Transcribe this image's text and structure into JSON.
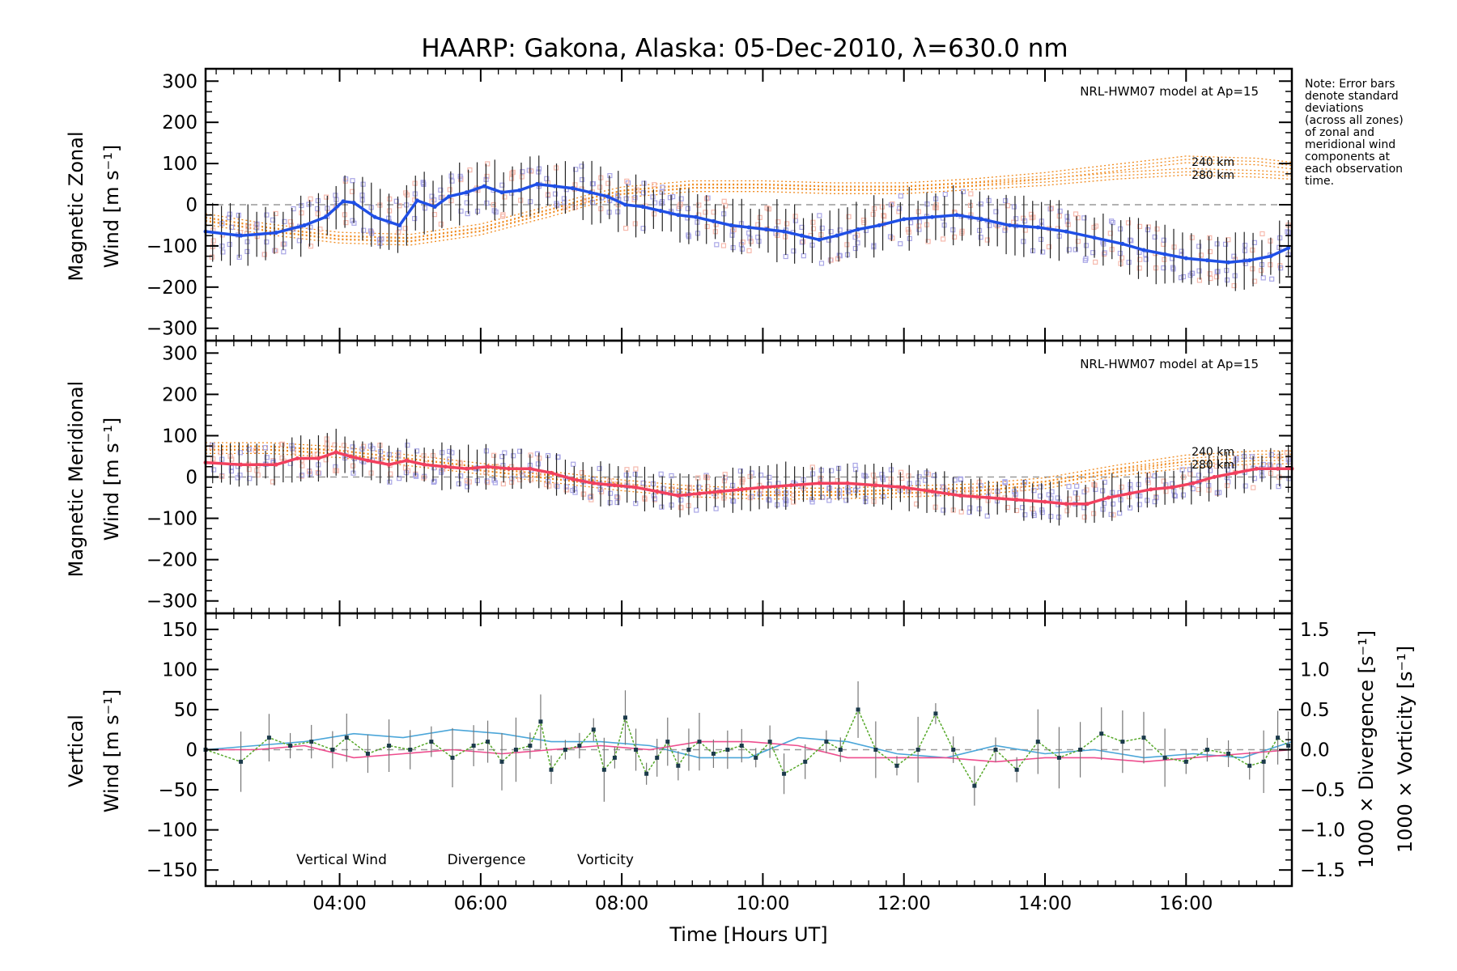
{
  "title": "HAARP: Gakona,  Alaska: 05-Dec-2010, λ=630.0 nm",
  "note": [
    "Note: Error bars",
    "denote standard",
    "deviations",
    "(across all zones)",
    "of zonal and",
    "meridional wind",
    "components at",
    "each observation",
    "time."
  ],
  "xlabel": "Time [Hours UT]",
  "xticks": [
    "04:00",
    "06:00",
    "08:00",
    "10:00",
    "12:00",
    "14:00",
    "16:00"
  ],
  "colors": {
    "zonal": "#1f4fe6",
    "meridional": "#f2405e",
    "model": "#f08a1e",
    "scatter": "#a9a6e6",
    "scatter_alt": "#f6b9ad",
    "errorbar": "#222222",
    "vertical": "#56a829",
    "divergence": "#4ba6d9",
    "vorticity": "#ee4d8e",
    "zero_line": "#999999"
  },
  "panels": {
    "zonal": {
      "ylabel_1": "Magnetic Zonal",
      "ylabel_2": "Wind [m s⁻¹]",
      "yticks": [
        "300",
        "200",
        "100",
        "0",
        "−100",
        "−200",
        "−300"
      ],
      "model_label": "NRL-HWM07 model at Ap=15",
      "alt_labels": [
        "240 km",
        "280 km"
      ]
    },
    "meridional": {
      "ylabel_1": "Magnetic Meridional",
      "ylabel_2": "Wind [m s⁻¹]",
      "yticks": [
        "300",
        "200",
        "100",
        "0",
        "−100",
        "−200",
        "−300"
      ],
      "model_label": "NRL-HWM07 model at Ap=15",
      "alt_labels": [
        "240 km",
        "280 km"
      ]
    },
    "vertical": {
      "ylabel_1": "Vertical",
      "ylabel_2": "Wind [m s⁻¹]",
      "yticks": [
        "150",
        "100",
        "50",
        "0",
        "−50",
        "−100",
        "−150"
      ],
      "yticks_right": [
        "1.5",
        "1.0",
        "0.5",
        "0.0",
        "−0.5",
        "−1.0",
        "−1.5"
      ],
      "ylabel_right_1": "1000 × Divergence [s⁻¹]",
      "ylabel_right_2": "1000 × Vorticity [s⁻¹]",
      "legend": [
        "Vertical Wind",
        "Divergence",
        "Vorticity"
      ]
    }
  },
  "chart_data": [
    {
      "type": "line",
      "panel": "zonal",
      "title": "HAARP: Gakona,  Alaska: 05-Dec-2010, λ=630.0 nm",
      "xlabel": "",
      "ylabel": "Magnetic Zonal Wind [m s⁻¹]",
      "xlim": [
        2.1,
        17.5
      ],
      "ylim": [
        -330,
        330
      ],
      "series": [
        {
          "x": [
            2.1,
            2.6,
            3.1,
            3.5,
            3.8,
            4.05,
            4.2,
            4.5,
            4.85,
            5.1,
            5.35,
            5.55,
            5.8,
            6.05,
            6.3,
            6.55,
            6.8,
            7.05,
            7.3,
            7.55,
            7.8,
            8.05,
            8.3,
            8.55,
            8.8,
            9.05,
            9.3,
            9.55,
            9.8,
            10.05,
            10.3,
            10.55,
            10.8,
            11.05,
            11.35,
            11.65,
            12.0,
            12.4,
            12.75,
            13.1,
            13.5,
            13.9,
            14.3,
            14.7,
            15.1,
            15.4,
            15.7,
            16.0,
            16.3,
            16.6,
            16.9,
            17.2,
            17.45
          ],
          "y": [
            -65,
            -75,
            -68,
            -50,
            -30,
            8,
            5,
            -30,
            -50,
            10,
            -5,
            20,
            30,
            45,
            30,
            35,
            50,
            45,
            40,
            30,
            20,
            0,
            -5,
            -15,
            -25,
            -30,
            -40,
            -50,
            -55,
            -60,
            -65,
            -75,
            -85,
            -75,
            -60,
            -50,
            -35,
            -30,
            -25,
            -35,
            -50,
            -55,
            -65,
            -80,
            -95,
            -110,
            -120,
            -130,
            -135,
            -140,
            -135,
            -125,
            -105
          ]
        },
        {
          "name": "240 km",
          "x": [
            2.1,
            3,
            4,
            5,
            6,
            7,
            7.5,
            8,
            9,
            10,
            11,
            12,
            13,
            14,
            15,
            16,
            17,
            17.5
          ],
          "y": [
            -30,
            -55,
            -75,
            -80,
            -55,
            -10,
            15,
            35,
            50,
            50,
            45,
            45,
            55,
            70,
            90,
            110,
            105,
            95
          ]
        },
        {
          "name": "280 km",
          "x": [
            2.1,
            3,
            4,
            5,
            6,
            7,
            7.5,
            8,
            9,
            10,
            11,
            12,
            13,
            14,
            15,
            16,
            17,
            17.5
          ],
          "y": [
            -40,
            -65,
            -85,
            -90,
            -65,
            -20,
            5,
            25,
            40,
            40,
            35,
            35,
            45,
            55,
            70,
            80,
            75,
            70
          ]
        }
      ]
    },
    {
      "type": "line",
      "panel": "meridional",
      "ylabel": "Magnetic Meridional Wind [m s⁻¹]",
      "xlim": [
        2.1,
        17.5
      ],
      "ylim": [
        -330,
        330
      ],
      "series": [
        {
          "x": [
            2.1,
            2.6,
            3.1,
            3.4,
            3.7,
            3.95,
            4.15,
            4.4,
            4.7,
            4.95,
            5.2,
            5.5,
            5.8,
            6.1,
            6.4,
            6.7,
            7.0,
            7.3,
            7.6,
            7.9,
            8.2,
            8.5,
            8.8,
            9.1,
            9.4,
            9.7,
            10.0,
            10.4,
            10.8,
            11.2,
            11.6,
            12.0,
            12.4,
            12.8,
            13.2,
            13.6,
            14.0,
            14.3,
            14.6,
            14.9,
            15.2,
            15.5,
            15.8,
            16.1,
            16.4,
            16.7,
            17.0,
            17.3,
            17.5
          ],
          "y": [
            35,
            30,
            30,
            45,
            45,
            60,
            50,
            40,
            30,
            40,
            30,
            25,
            20,
            25,
            20,
            20,
            10,
            -5,
            -15,
            -20,
            -25,
            -35,
            -45,
            -40,
            -35,
            -30,
            -25,
            -20,
            -15,
            -15,
            -20,
            -25,
            -35,
            -45,
            -50,
            -55,
            -60,
            -65,
            -65,
            -50,
            -40,
            -30,
            -25,
            -15,
            0,
            10,
            20,
            20,
            20
          ]
        },
        {
          "name": "240 km",
          "x": [
            2.1,
            3,
            4,
            5,
            6,
            7,
            8,
            9,
            10,
            11,
            12,
            13,
            14,
            15,
            16,
            17,
            17.5
          ],
          "y": [
            75,
            75,
            65,
            45,
            25,
            5,
            -15,
            -30,
            -35,
            -35,
            -30,
            -25,
            -10,
            20,
            45,
            55,
            55
          ]
        },
        {
          "name": "280 km",
          "x": [
            2.1,
            3,
            4,
            5,
            6,
            7,
            8,
            9,
            10,
            11,
            12,
            13,
            14,
            15,
            16,
            17,
            17.5
          ],
          "y": [
            65,
            65,
            55,
            35,
            15,
            -5,
            -25,
            -40,
            -45,
            -45,
            -40,
            -35,
            -20,
            10,
            30,
            40,
            40
          ]
        }
      ]
    },
    {
      "type": "line",
      "panel": "vertical",
      "xlabel": "Time [Hours UT]",
      "ylabel": "Vertical Wind [m s⁻¹]",
      "xlim": [
        2.1,
        17.5
      ],
      "ylim": [
        -170,
        170
      ],
      "y2lim": [
        -1.7,
        1.7
      ],
      "series": [
        {
          "name": "Vertical Wind",
          "x": [
            2.1,
            2.6,
            3.0,
            3.3,
            3.6,
            3.9,
            4.1,
            4.4,
            4.7,
            5.0,
            5.3,
            5.6,
            5.9,
            6.1,
            6.3,
            6.5,
            6.7,
            6.85,
            7.0,
            7.2,
            7.4,
            7.6,
            7.75,
            7.9,
            8.05,
            8.2,
            8.35,
            8.5,
            8.65,
            8.8,
            8.95,
            9.1,
            9.3,
            9.5,
            9.7,
            9.9,
            10.1,
            10.3,
            10.6,
            10.9,
            11.1,
            11.35,
            11.6,
            11.9,
            12.2,
            12.45,
            12.7,
            13.0,
            13.3,
            13.6,
            13.9,
            14.2,
            14.5,
            14.8,
            15.1,
            15.4,
            15.7,
            16.0,
            16.3,
            16.6,
            16.9,
            17.1,
            17.3,
            17.45
          ],
          "y": [
            0,
            -15,
            15,
            5,
            10,
            0,
            15,
            -5,
            5,
            0,
            10,
            -10,
            5,
            10,
            -15,
            0,
            5,
            35,
            -25,
            0,
            5,
            25,
            -25,
            -10,
            40,
            0,
            -30,
            -10,
            10,
            -20,
            0,
            10,
            -5,
            0,
            5,
            -10,
            10,
            -30,
            -15,
            10,
            0,
            50,
            0,
            -20,
            0,
            45,
            0,
            -45,
            0,
            -25,
            10,
            -10,
            0,
            20,
            10,
            15,
            -10,
            -15,
            0,
            -5,
            -20,
            -15,
            15,
            5
          ]
        },
        {
          "name": "Divergence",
          "x": [
            2.1,
            2.8,
            3.5,
            4.2,
            4.9,
            5.6,
            6.3,
            7.0,
            7.7,
            8.4,
            9.1,
            9.8,
            10.5,
            11.2,
            11.9,
            12.6,
            13.3,
            14.0,
            14.7,
            15.4,
            16.1,
            16.8,
            17.5
          ],
          "y": [
            0.0,
            0.05,
            0.1,
            0.2,
            0.15,
            0.25,
            0.2,
            0.1,
            0.1,
            0.05,
            -0.1,
            -0.1,
            0.15,
            0.1,
            -0.05,
            -0.1,
            0.05,
            -0.05,
            0.0,
            -0.1,
            -0.05,
            -0.1,
            0.1
          ]
        },
        {
          "name": "Vorticity",
          "x": [
            2.1,
            2.8,
            3.5,
            4.2,
            4.9,
            5.6,
            6.3,
            7.0,
            7.7,
            8.4,
            9.1,
            9.8,
            10.5,
            11.2,
            11.9,
            12.6,
            13.3,
            14.0,
            14.7,
            15.4,
            16.1,
            16.8,
            17.5
          ],
          "y": [
            0.0,
            0.0,
            0.05,
            -0.1,
            -0.05,
            0.0,
            -0.05,
            0.0,
            0.05,
            0.0,
            0.1,
            0.1,
            0.05,
            -0.1,
            -0.1,
            -0.1,
            -0.15,
            -0.1,
            -0.1,
            -0.15,
            -0.1,
            -0.05,
            0.0
          ]
        }
      ]
    }
  ]
}
